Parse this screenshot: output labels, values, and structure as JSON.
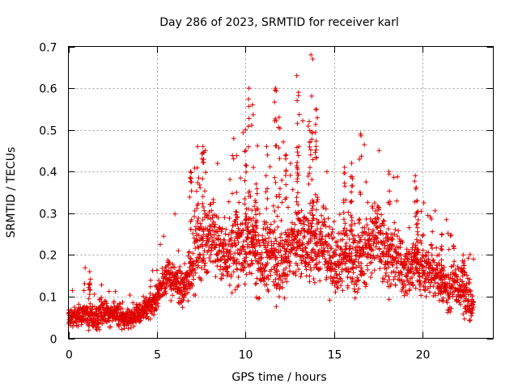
{
  "chart_data": {
    "type": "scatter",
    "title": "Day 286 of 2023, SRMTID for receiver karl",
    "xlabel": "GPS time / hours",
    "ylabel": "SRMTID / TECUs",
    "xlim": [
      0,
      24
    ],
    "ylim": [
      0,
      0.7
    ],
    "xticks": [
      "0",
      "5",
      "10",
      "15",
      "20"
    ],
    "yticks": [
      "0",
      "0.1",
      "0.2",
      "0.3",
      "0.4",
      "0.5",
      "0.6",
      "0.7"
    ],
    "grid": true,
    "marker": "plus",
    "color": "#e00000",
    "envelope_estimate": {
      "x": [
        0.0,
        0.5,
        1.0,
        1.5,
        2.0,
        2.5,
        3.0,
        3.5,
        4.0,
        4.5,
        5.0,
        5.5,
        6.0,
        6.5,
        7.0,
        7.5,
        8.0,
        8.5,
        9.0,
        9.5,
        10.0,
        10.5,
        11.0,
        11.5,
        12.0,
        12.5,
        13.0,
        13.5,
        14.0,
        14.5,
        15.0,
        15.5,
        16.0,
        16.5,
        17.0,
        17.5,
        18.0,
        18.5,
        19.0,
        19.5,
        20.0,
        20.5,
        21.0,
        21.5,
        22.0,
        22.5,
        22.9
      ],
      "center": [
        0.05,
        0.05,
        0.06,
        0.05,
        0.06,
        0.06,
        0.05,
        0.05,
        0.06,
        0.07,
        0.1,
        0.15,
        0.14,
        0.11,
        0.19,
        0.23,
        0.25,
        0.22,
        0.2,
        0.22,
        0.23,
        0.21,
        0.19,
        0.2,
        0.19,
        0.21,
        0.23,
        0.22,
        0.23,
        0.21,
        0.19,
        0.2,
        0.2,
        0.19,
        0.23,
        0.25,
        0.2,
        0.19,
        0.16,
        0.18,
        0.17,
        0.16,
        0.14,
        0.12,
        0.13,
        0.1,
        0.07
      ],
      "spread": [
        0.02,
        0.02,
        0.03,
        0.03,
        0.03,
        0.03,
        0.02,
        0.02,
        0.03,
        0.03,
        0.03,
        0.04,
        0.04,
        0.04,
        0.07,
        0.08,
        0.08,
        0.07,
        0.07,
        0.08,
        0.1,
        0.09,
        0.08,
        0.09,
        0.08,
        0.08,
        0.1,
        0.09,
        0.08,
        0.08,
        0.07,
        0.08,
        0.08,
        0.07,
        0.08,
        0.08,
        0.07,
        0.07,
        0.06,
        0.07,
        0.06,
        0.06,
        0.05,
        0.05,
        0.05,
        0.05,
        0.04
      ]
    },
    "peak_points": [
      {
        "x": 7.3,
        "y": 0.46
      },
      {
        "x": 7.6,
        "y": 0.46
      },
      {
        "x": 6.9,
        "y": 0.4
      },
      {
        "x": 10.2,
        "y": 0.6
      },
      {
        "x": 10.4,
        "y": 0.56
      },
      {
        "x": 10.0,
        "y": 0.5
      },
      {
        "x": 11.7,
        "y": 0.6
      },
      {
        "x": 11.9,
        "y": 0.53
      },
      {
        "x": 11.2,
        "y": 0.46
      },
      {
        "x": 12.3,
        "y": 0.44
      },
      {
        "x": 12.9,
        "y": 0.63
      },
      {
        "x": 13.0,
        "y": 0.59
      },
      {
        "x": 13.7,
        "y": 0.68
      },
      {
        "x": 13.8,
        "y": 0.67
      },
      {
        "x": 13.6,
        "y": 0.52
      },
      {
        "x": 14.0,
        "y": 0.55
      },
      {
        "x": 16.5,
        "y": 0.49
      },
      {
        "x": 16.0,
        "y": 0.42
      },
      {
        "x": 15.6,
        "y": 0.41
      },
      {
        "x": 18.1,
        "y": 0.4
      },
      {
        "x": 19.6,
        "y": 0.39
      },
      {
        "x": 19.7,
        "y": 0.33
      },
      {
        "x": 21.1,
        "y": 0.25
      },
      {
        "x": 22.3,
        "y": 0.2
      },
      {
        "x": 1.2,
        "y": 0.16
      },
      {
        "x": 9.5,
        "y": 0.35
      },
      {
        "x": 10.6,
        "y": 0.37
      }
    ]
  }
}
